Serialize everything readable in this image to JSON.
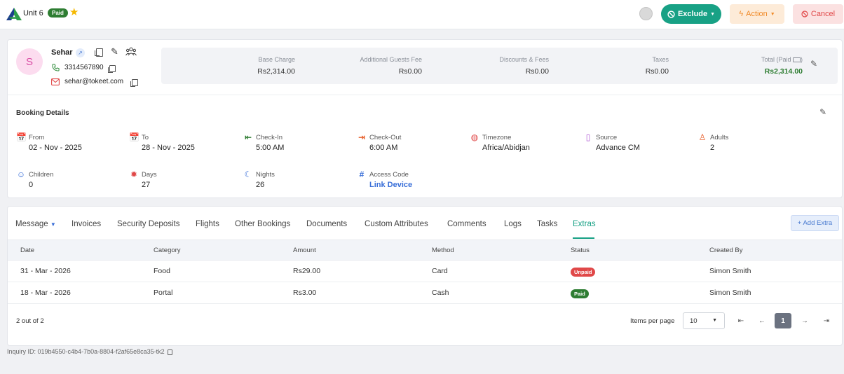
{
  "header": {
    "unit_title": "Unit 6",
    "paid_badge": "Paid",
    "exclude_label": "Exclude",
    "action_label": "Action",
    "cancel_label": "Cancel",
    "colors": {
      "primary": "#18a185",
      "action": "#f08a28",
      "cancel": "#e04848",
      "paid": "#2e7d32"
    }
  },
  "guest": {
    "initial": "S",
    "name": "Sehar",
    "phone": "3314567890",
    "email": "sehar@tokeet.com"
  },
  "charges": {
    "base_charge": {
      "label": "Base Charge",
      "value": "Rs2,314.00"
    },
    "additional_guests": {
      "label": "Additional Guests Fee",
      "value": "Rs0.00"
    },
    "discounts": {
      "label": "Discounts & Fees",
      "value": "Rs0.00"
    },
    "taxes": {
      "label": "Taxes",
      "value": "Rs0.00"
    },
    "total": {
      "label": "Total (Paid",
      "value": "Rs2,314.00"
    }
  },
  "booking": {
    "title": "Booking Details",
    "from": {
      "label": "From",
      "value": "02 - Nov - 2025"
    },
    "to": {
      "label": "To",
      "value": "28 - Nov - 2025"
    },
    "checkin": {
      "label": "Check-In",
      "value": "5:00 AM"
    },
    "checkout": {
      "label": "Check-Out",
      "value": "6:00 AM"
    },
    "timezone": {
      "label": "Timezone",
      "value": "Africa/Abidjan"
    },
    "source": {
      "label": "Source",
      "value": "Advance CM"
    },
    "adults": {
      "label": "Adults",
      "value": "2"
    },
    "children": {
      "label": "Children",
      "value": "0"
    },
    "days": {
      "label": "Days",
      "value": "27"
    },
    "nights": {
      "label": "Nights",
      "value": "26"
    },
    "access_code": {
      "label": "Access Code",
      "value": "Link Device"
    }
  },
  "tabs": {
    "message": "Message",
    "invoices": "Invoices",
    "security_deposits": "Security Deposits",
    "flights": "Flights",
    "other_bookings": "Other Bookings",
    "documents": "Documents",
    "custom_attributes": "Custom Attributes",
    "comments": "Comments",
    "logs": "Logs",
    "tasks": "Tasks",
    "extras": "Extras",
    "add_extra": "+ Add Extra"
  },
  "table": {
    "columns": [
      "Date",
      "Category",
      "Amount",
      "Method",
      "Status",
      "Created By"
    ],
    "rows": [
      [
        "31 - Mar - 2026",
        "Food",
        "Rs29.00",
        "Card",
        "Unpaid",
        "Simon Smith"
      ],
      [
        "18 - Mar - 2026",
        "Portal",
        "Rs3.00",
        "Cash",
        "Paid",
        "Simon Smith"
      ]
    ]
  },
  "pagination": {
    "count": "2 out of 2",
    "items_per_page_label": "Items per page",
    "items_per_page": "10",
    "current_page": "1"
  },
  "footer": {
    "inquiry_id": "Inquiry ID: 019b4550-c4b4-7b0a-8804-f2af65e8ca35-tk2"
  }
}
